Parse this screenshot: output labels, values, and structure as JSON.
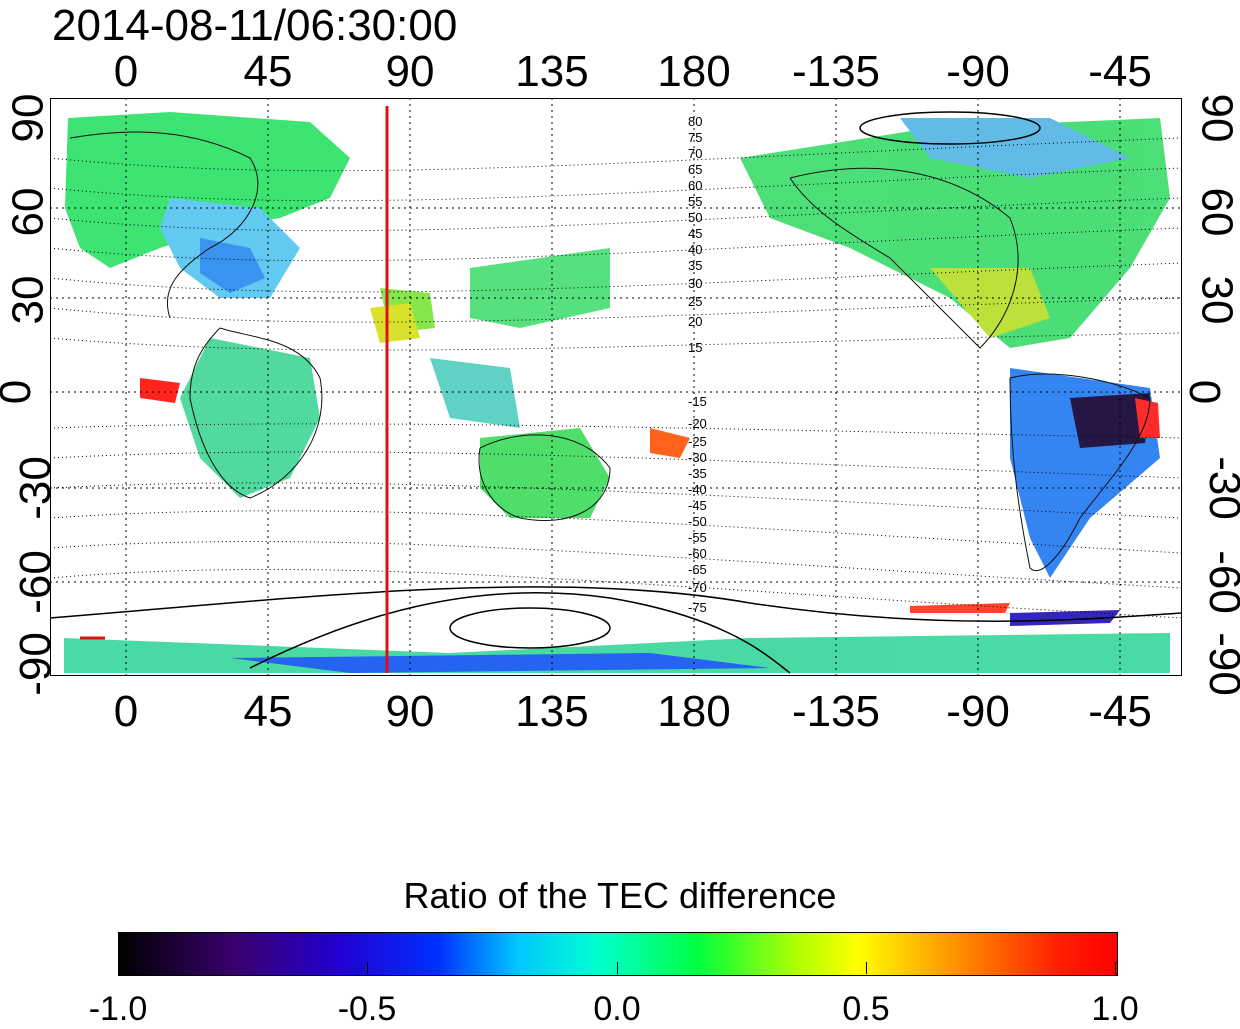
{
  "timestamp": "2014-08-11/06:30:00",
  "x_ticks": [
    "0",
    "45",
    "90",
    "135",
    "180",
    "-135",
    "-90",
    "-45"
  ],
  "y_ticks_left": [
    "90",
    "60",
    "30",
    "0",
    "-30",
    "-60",
    "-90"
  ],
  "y_ticks_right": [
    "90",
    "60",
    "30",
    "0",
    "-30",
    "-60",
    "-90"
  ],
  "contour_labels_north": [
    "80",
    "75",
    "70",
    "65",
    "60",
    "55",
    "50",
    "45",
    "40",
    "35",
    "30",
    "25",
    "20",
    "15"
  ],
  "contour_labels_south": [
    "-15",
    "-20",
    "-25",
    "-30",
    "-35",
    "-40",
    "-45",
    "-50",
    "-55",
    "-60",
    "-65",
    "-70",
    "-75"
  ],
  "reference_meridian_deg": 85,
  "colorbar": {
    "title": "Ratio of the TEC difference",
    "ticks": [
      "-1.0",
      "-0.5",
      "0.0",
      "0.5",
      "1.0"
    ],
    "range": [
      -1.0,
      1.0
    ]
  },
  "colors": {
    "reference_line": "#e01010",
    "background": "#ffffff"
  }
}
